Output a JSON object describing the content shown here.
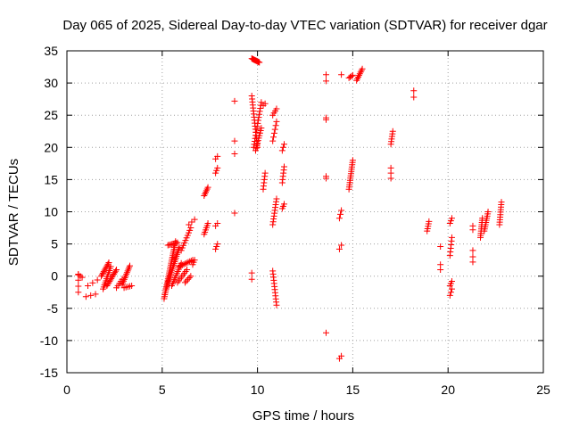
{
  "chart_data": {
    "type": "scatter",
    "title": "Day 065 of 2025, Sidereal Day-to-day VTEC variation (SDTVAR) for receiver dgar",
    "xlabel": "GPS time / hours",
    "ylabel": "SDTVAR / TECUs",
    "xlim": [
      0,
      25
    ],
    "ylim": [
      -15,
      35
    ],
    "xticks": [
      0,
      5,
      10,
      15,
      20,
      25
    ],
    "yticks": [
      -15,
      -10,
      -5,
      0,
      5,
      10,
      15,
      20,
      25,
      30,
      35
    ],
    "grid": true,
    "marker": "+",
    "color": "#ff0000",
    "series": [
      {
        "name": "SDTVAR",
        "segments": [
          {
            "x0": 0.6,
            "y0": -2.5,
            "x1": 0.6,
            "y1": 0.3,
            "n": 4
          },
          {
            "x0": 0.6,
            "y0": 0.2,
            "x1": 0.8,
            "y1": -0.2,
            "n": 3
          },
          {
            "x0": 1.0,
            "y0": -3.2,
            "x1": 1.5,
            "y1": -2.8,
            "n": 3
          },
          {
            "x0": 1.1,
            "y0": -1.5,
            "x1": 1.6,
            "y1": -0.6,
            "n": 3
          },
          {
            "x0": 1.8,
            "y0": 0.0,
            "x1": 2.2,
            "y1": 2.1,
            "n": 10
          },
          {
            "x0": 1.9,
            "y0": -2.0,
            "x1": 2.3,
            "y1": 1.5,
            "n": 12
          },
          {
            "x0": 2.1,
            "y0": -1.5,
            "x1": 2.6,
            "y1": 1.0,
            "n": 12
          },
          {
            "x0": 2.6,
            "y0": -1.8,
            "x1": 2.9,
            "y1": -0.5,
            "n": 5
          },
          {
            "x0": 2.9,
            "y0": -1.3,
            "x1": 3.3,
            "y1": 1.6,
            "n": 12
          },
          {
            "x0": 3.0,
            "y0": -1.8,
            "x1": 3.4,
            "y1": -1.5,
            "n": 5
          },
          {
            "x0": 5.1,
            "y0": -3.5,
            "x1": 5.7,
            "y1": 5.4,
            "n": 30
          },
          {
            "x0": 5.2,
            "y0": -2.0,
            "x1": 5.9,
            "y1": 4.5,
            "n": 24
          },
          {
            "x0": 5.3,
            "y0": 4.8,
            "x1": 5.8,
            "y1": 5.2,
            "n": 8
          },
          {
            "x0": 5.5,
            "y0": -1.5,
            "x1": 6.0,
            "y1": 2.0,
            "n": 12
          },
          {
            "x0": 5.8,
            "y0": -1.0,
            "x1": 6.3,
            "y1": 1.0,
            "n": 8
          },
          {
            "x0": 5.9,
            "y0": 1.5,
            "x1": 6.6,
            "y1": 2.5,
            "n": 10
          },
          {
            "x0": 6.0,
            "y0": 4.0,
            "x1": 6.5,
            "y1": 7.5,
            "n": 10
          },
          {
            "x0": 6.2,
            "y0": -1.0,
            "x1": 6.5,
            "y1": 0.0,
            "n": 5
          },
          {
            "x0": 6.6,
            "y0": 1.8,
            "x1": 6.7,
            "y1": 2.5,
            "n": 3
          },
          {
            "x0": 6.4,
            "y0": 8.0,
            "x1": 6.7,
            "y1": 8.8,
            "n": 3
          },
          {
            "x0": 7.2,
            "y0": 12.5,
            "x1": 7.4,
            "y1": 13.8,
            "n": 6
          },
          {
            "x0": 7.2,
            "y0": 6.5,
            "x1": 7.4,
            "y1": 8.2,
            "n": 6
          },
          {
            "x0": 7.8,
            "y0": 4.2,
            "x1": 7.9,
            "y1": 5.0,
            "n": 3
          },
          {
            "x0": 7.8,
            "y0": 7.8,
            "x1": 7.9,
            "y1": 8.2,
            "n": 2
          },
          {
            "x0": 7.8,
            "y0": 16.0,
            "x1": 7.9,
            "y1": 16.8,
            "n": 3
          },
          {
            "x0": 7.8,
            "y0": 18.2,
            "x1": 7.9,
            "y1": 18.6,
            "n": 2
          },
          {
            "x0": 8.8,
            "y0": 27.2,
            "x1": 8.8,
            "y1": 27.2,
            "n": 1
          },
          {
            "x0": 8.8,
            "y0": 19.0,
            "x1": 8.8,
            "y1": 21.0,
            "n": 2
          },
          {
            "x0": 8.8,
            "y0": 9.8,
            "x1": 8.8,
            "y1": 9.8,
            "n": 1
          },
          {
            "x0": 9.7,
            "y0": 33.8,
            "x1": 10.1,
            "y1": 33.2,
            "n": 12
          },
          {
            "x0": 9.7,
            "y0": 28.0,
            "x1": 10.0,
            "y1": 20.0,
            "n": 18
          },
          {
            "x0": 9.8,
            "y0": 20.0,
            "x1": 10.2,
            "y1": 27.0,
            "n": 16
          },
          {
            "x0": 9.9,
            "y0": 19.5,
            "x1": 10.2,
            "y1": 23.0,
            "n": 10
          },
          {
            "x0": 9.7,
            "y0": -0.5,
            "x1": 9.7,
            "y1": 0.5,
            "n": 2
          },
          {
            "x0": 10.3,
            "y0": 13.5,
            "x1": 10.4,
            "y1": 16.0,
            "n": 6
          },
          {
            "x0": 10.3,
            "y0": 26.5,
            "x1": 10.4,
            "y1": 26.8,
            "n": 2
          },
          {
            "x0": 10.8,
            "y0": 8.0,
            "x1": 11.0,
            "y1": 12.0,
            "n": 10
          },
          {
            "x0": 10.8,
            "y0": 0.8,
            "x1": 11.0,
            "y1": -4.5,
            "n": 12
          },
          {
            "x0": 10.8,
            "y0": 21.0,
            "x1": 11.0,
            "y1": 24.0,
            "n": 6
          },
          {
            "x0": 10.8,
            "y0": 25.0,
            "x1": 11.0,
            "y1": 26.0,
            "n": 4
          },
          {
            "x0": 11.3,
            "y0": 14.5,
            "x1": 11.4,
            "y1": 17.0,
            "n": 6
          },
          {
            "x0": 11.3,
            "y0": 10.5,
            "x1": 11.4,
            "y1": 11.2,
            "n": 3
          },
          {
            "x0": 11.3,
            "y0": 19.5,
            "x1": 11.4,
            "y1": 20.5,
            "n": 3
          },
          {
            "x0": 13.6,
            "y0": -8.8,
            "x1": 13.6,
            "y1": -8.8,
            "n": 1
          },
          {
            "x0": 13.6,
            "y0": 15.2,
            "x1": 13.6,
            "y1": 15.5,
            "n": 2
          },
          {
            "x0": 13.6,
            "y0": 24.3,
            "x1": 13.6,
            "y1": 24.6,
            "n": 2
          },
          {
            "x0": 13.6,
            "y0": 30.3,
            "x1": 13.6,
            "y1": 31.3,
            "n": 2
          },
          {
            "x0": 14.3,
            "y0": 4.2,
            "x1": 14.4,
            "y1": 4.8,
            "n": 2
          },
          {
            "x0": 14.3,
            "y0": 9.0,
            "x1": 14.4,
            "y1": 10.2,
            "n": 3
          },
          {
            "x0": 14.3,
            "y0": -12.8,
            "x1": 14.4,
            "y1": -12.4,
            "n": 2
          },
          {
            "x0": 14.4,
            "y0": 31.3,
            "x1": 14.4,
            "y1": 31.3,
            "n": 1
          },
          {
            "x0": 14.8,
            "y0": 13.5,
            "x1": 15.0,
            "y1": 18.0,
            "n": 14
          },
          {
            "x0": 14.8,
            "y0": 30.8,
            "x1": 15.0,
            "y1": 31.2,
            "n": 4
          },
          {
            "x0": 15.2,
            "y0": 30.4,
            "x1": 15.5,
            "y1": 32.2,
            "n": 8
          },
          {
            "x0": 17.0,
            "y0": 15.2,
            "x1": 17.0,
            "y1": 16.8,
            "n": 3
          },
          {
            "x0": 17.0,
            "y0": 20.5,
            "x1": 17.1,
            "y1": 22.5,
            "n": 6
          },
          {
            "x0": 18.2,
            "y0": 27.8,
            "x1": 18.2,
            "y1": 28.8,
            "n": 2
          },
          {
            "x0": 18.9,
            "y0": 7.0,
            "x1": 19.0,
            "y1": 8.5,
            "n": 5
          },
          {
            "x0": 19.6,
            "y0": 1.0,
            "x1": 19.6,
            "y1": 1.8,
            "n": 2
          },
          {
            "x0": 19.6,
            "y0": 4.6,
            "x1": 19.6,
            "y1": 4.6,
            "n": 1
          },
          {
            "x0": 20.1,
            "y0": -3.0,
            "x1": 20.2,
            "y1": -2.0,
            "n": 3
          },
          {
            "x0": 20.1,
            "y0": -1.5,
            "x1": 20.2,
            "y1": -0.8,
            "n": 3
          },
          {
            "x0": 20.1,
            "y0": 3.2,
            "x1": 20.2,
            "y1": 6.0,
            "n": 6
          },
          {
            "x0": 20.1,
            "y0": 8.2,
            "x1": 20.2,
            "y1": 9.0,
            "n": 3
          },
          {
            "x0": 21.3,
            "y0": 2.2,
            "x1": 21.3,
            "y1": 3.0,
            "n": 2
          },
          {
            "x0": 21.3,
            "y0": 4.0,
            "x1": 21.3,
            "y1": 4.0,
            "n": 1
          },
          {
            "x0": 21.3,
            "y0": 7.2,
            "x1": 21.3,
            "y1": 7.8,
            "n": 2
          },
          {
            "x0": 21.7,
            "y0": 6.0,
            "x1": 21.8,
            "y1": 9.0,
            "n": 10
          },
          {
            "x0": 21.9,
            "y0": 7.0,
            "x1": 22.1,
            "y1": 10.0,
            "n": 10
          },
          {
            "x0": 22.7,
            "y0": 8.0,
            "x1": 22.8,
            "y1": 11.5,
            "n": 10
          }
        ]
      }
    ]
  }
}
